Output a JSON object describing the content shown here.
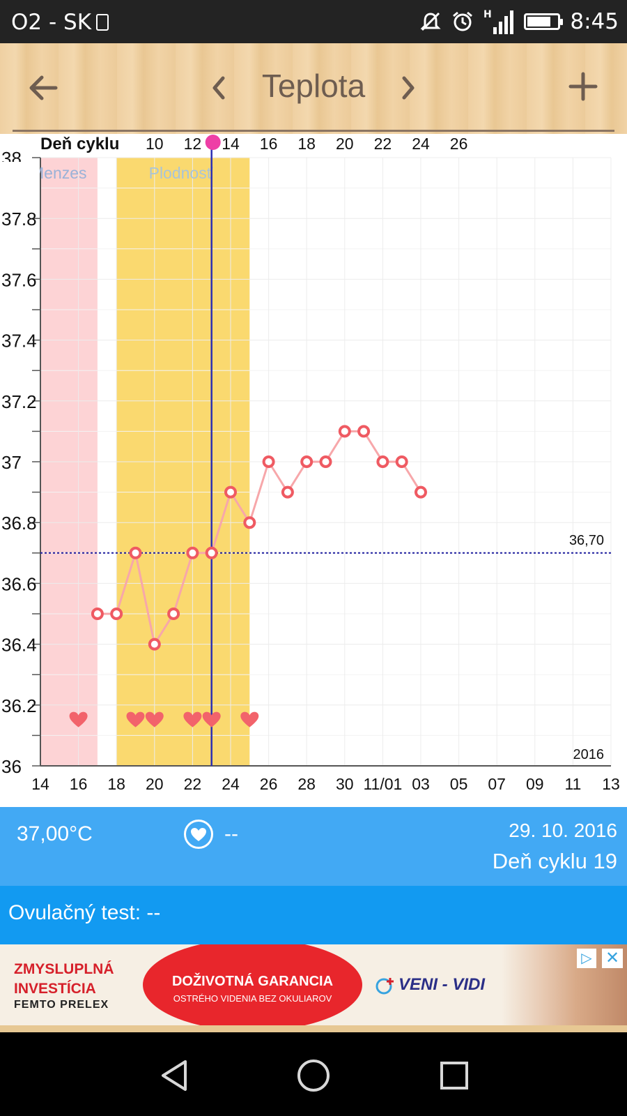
{
  "status_bar": {
    "carrier": "O2 - SK",
    "time": "8:45",
    "network_label": "H",
    "icons": [
      "sim-card-icon",
      "mute-icon",
      "alarm-icon",
      "signal-icon",
      "battery-icon"
    ]
  },
  "toolbar": {
    "title": "Teplota",
    "back_icon": "arrow-left-icon",
    "prev_icon": "chevron-left-icon",
    "next_icon": "chevron-right-icon",
    "add_icon": "plus-icon",
    "bg_color": "#efd0a2"
  },
  "chart_data": {
    "type": "line",
    "top_axis_label": "Deň cyklu",
    "cycle_day_ticks": [
      "10",
      "12",
      "14",
      "16",
      "18",
      "20",
      "22",
      "24",
      "26"
    ],
    "date_ticks": [
      "14",
      "16",
      "18",
      "20",
      "22",
      "24",
      "26",
      "28",
      "30",
      "11/01",
      "03",
      "05",
      "07",
      "09",
      "11",
      "13"
    ],
    "y_ticks": [
      "36",
      "36.2",
      "36.4",
      "36.6",
      "36.8",
      "37",
      "37.2",
      "37.4",
      "37.6",
      "37.8",
      "38"
    ],
    "ylim": [
      36,
      38
    ],
    "year_label": "2016",
    "phase_labels": {
      "menses": "Menzes",
      "fertile": "Plodnosť"
    },
    "menses_days": [
      14,
      17
    ],
    "fertile_days": [
      18,
      25
    ],
    "ovulation_day": 23,
    "coverline": {
      "value": 36.7,
      "label": "36,70"
    },
    "series": [
      {
        "x": [
          17,
          18,
          19,
          20,
          21,
          22,
          23,
          24,
          25,
          26,
          27,
          28,
          29,
          30,
          31,
          32,
          33,
          34
        ],
        "values": [
          36.5,
          36.5,
          36.7,
          36.4,
          36.5,
          36.7,
          36.7,
          36.9,
          36.8,
          37.0,
          36.9,
          37.0,
          37.0,
          37.1,
          37.1,
          37.0,
          37.0,
          36.9
        ]
      }
    ],
    "intercourse_days": [
      16,
      19,
      20,
      22,
      23,
      25
    ],
    "colors": {
      "menses": "#fdd3d5",
      "fertile": "#fad96f",
      "line": "#f7a7aa",
      "marker": "#ef5a62",
      "ovulation_line": "#2b2fb3",
      "coverline": "#1b1b9e",
      "heart": "#f2636b",
      "ovulation_dot": "#ee3fa6"
    }
  },
  "info_panel": {
    "temperature": "37,00°C",
    "intercourse_value": "--",
    "date": "29. 10. 2016",
    "cycle_day": "Deň cyklu 19",
    "heart_icon": "heart-circle-icon",
    "bg_color": "#42a9f4"
  },
  "ovulation_test": {
    "label": "Ovulačný test:",
    "value": "--",
    "bg_color": "#129af1"
  },
  "ad": {
    "left_line1": "ZMYSLUPLNÁ",
    "left_line2": "INVESTÍCIA",
    "left_line3": "FEMTO PRELEX",
    "center_line1": "DOŽIVOTNÁ GARANCIA",
    "center_line2": "OSTRÉHO VIDENIA BEZ OKULIAROV",
    "brand": "VENI - VIDI",
    "adchoice_icon": "adchoices-icon",
    "close_icon": "close-icon"
  },
  "nav_bar": {
    "icons": [
      "back-triangle-icon",
      "home-circle-icon",
      "recents-square-icon"
    ]
  }
}
